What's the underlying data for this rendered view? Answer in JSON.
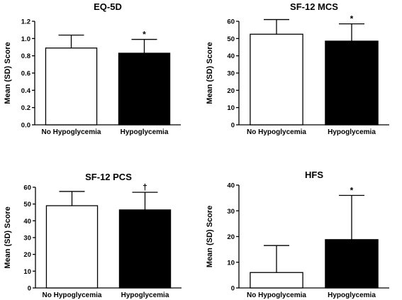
{
  "chart_data": [
    {
      "type": "bar",
      "title": "EQ-5D",
      "ylabel": "Mean (SD) Score",
      "categories": [
        "No Hypoglycemia",
        "Hypoglycemia"
      ],
      "values": [
        0.89,
        0.83
      ],
      "sd": [
        0.15,
        0.16
      ],
      "annotations": [
        "",
        "*"
      ],
      "bar_colors": [
        "#ffffff",
        "#000000"
      ],
      "ylim": [
        0,
        1.2
      ],
      "yticks": [
        "0.0",
        "0.2",
        "0.4",
        "0.6",
        "0.8",
        "1.0",
        "1.2"
      ]
    },
    {
      "type": "bar",
      "title": "SF-12 MCS",
      "ylabel": "Mean (SD) Score",
      "categories": [
        "No Hypoglycemia",
        "Hypoglycemia"
      ],
      "values": [
        52.5,
        48.5
      ],
      "sd": [
        8.5,
        10.0
      ],
      "annotations": [
        "",
        "*"
      ],
      "bar_colors": [
        "#ffffff",
        "#000000"
      ],
      "ylim": [
        0,
        60
      ],
      "yticks": [
        "0",
        "10",
        "20",
        "30",
        "40",
        "50",
        "60"
      ]
    },
    {
      "type": "bar",
      "title": "SF-12 PCS",
      "ylabel": "Mean (SD) Score",
      "categories": [
        "No Hypoglycemia",
        "Hypoglycemia"
      ],
      "values": [
        49.0,
        46.5
      ],
      "sd": [
        8.5,
        10.5
      ],
      "annotations": [
        "",
        "†"
      ],
      "bar_colors": [
        "#ffffff",
        "#000000"
      ],
      "ylim": [
        0,
        60
      ],
      "yticks": [
        "0",
        "10",
        "20",
        "30",
        "40",
        "50",
        "60"
      ]
    },
    {
      "type": "bar",
      "title": "HFS",
      "ylabel": "Mean (SD) Score",
      "categories": [
        "No Hypoglycemia",
        "Hypoglycemia"
      ],
      "values": [
        6.0,
        18.8
      ],
      "sd": [
        10.5,
        17.2
      ],
      "annotations": [
        "",
        "*"
      ],
      "bar_colors": [
        "#ffffff",
        "#000000"
      ],
      "ylim": [
        0,
        40
      ],
      "yticks": [
        "0",
        "10",
        "20",
        "30",
        "40"
      ]
    }
  ]
}
